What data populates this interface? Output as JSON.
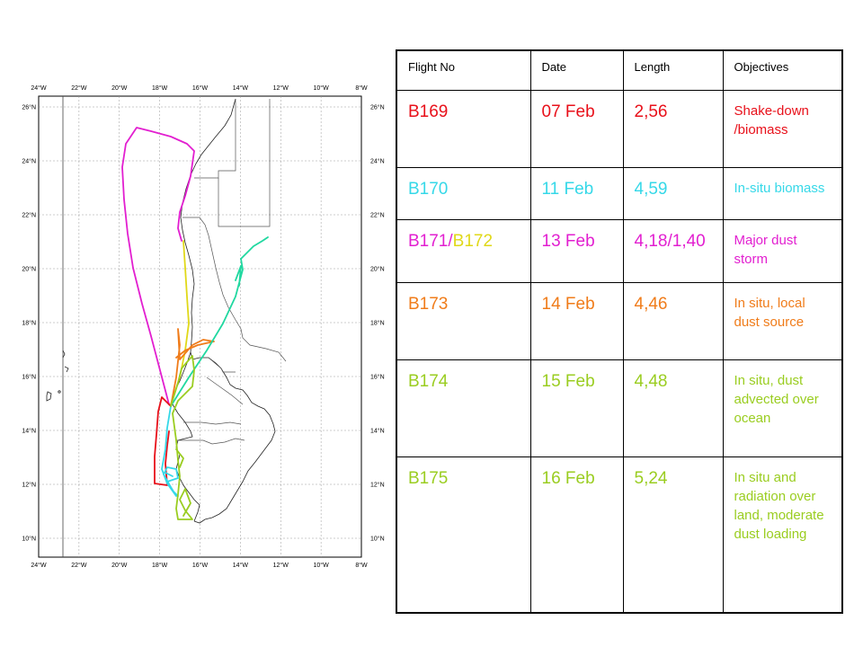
{
  "map": {
    "lon_labels": [
      "24°W",
      "22°W",
      "20°W",
      "18°W",
      "16°W",
      "14°W",
      "12°W",
      "10°W",
      "8°W"
    ],
    "lat_labels": [
      "26°N",
      "24°N",
      "22°N",
      "20°N",
      "18°N",
      "16°N",
      "14°N",
      "12°N",
      "10°N"
    ],
    "lon_values": [
      -24,
      -22,
      -20,
      -18,
      -16,
      -14,
      -12,
      -10,
      -8
    ],
    "lat_values": [
      26,
      24,
      22,
      20,
      18,
      16,
      14,
      12,
      10
    ],
    "extent": {
      "lon_min": -24,
      "lon_max": -8,
      "lat_min": 9.3,
      "lat_max": 26.4
    }
  },
  "table": {
    "headers": [
      "Flight No",
      "Date",
      "Length",
      "Objectives"
    ],
    "rows": [
      {
        "flight": "B169",
        "date": "07 Feb",
        "length": "2,56",
        "objectives": "Shake-down /biomass",
        "color": "#e8101a"
      },
      {
        "flight": "B170",
        "date": "11 Feb",
        "length": "4,59",
        "objectives": "In-situ biomass",
        "color": "#35d8e8"
      },
      {
        "flight_a": "B171",
        "flight_sep": "/",
        "flight_b": "B172",
        "date": "13 Feb",
        "length": "4,18/1,40",
        "objectives": "Major dust storm",
        "color": "#e21fd0",
        "color_b": "#e0d818"
      },
      {
        "flight": "B173",
        "date": "14 Feb",
        "length": "4,46",
        "objectives": "In situ, local dust source",
        "color": "#f07c1a"
      },
      {
        "flight": "B174",
        "date": "15 Feb",
        "length": "4,48",
        "objectives": "In situ, dust advected over ocean",
        "color": "#9acd20"
      },
      {
        "flight": "B175",
        "date": "16 Feb",
        "length": "5,24",
        "objectives": "In situ and radiation over land, moderate dust loading",
        "color": "#9acd20"
      }
    ]
  }
}
